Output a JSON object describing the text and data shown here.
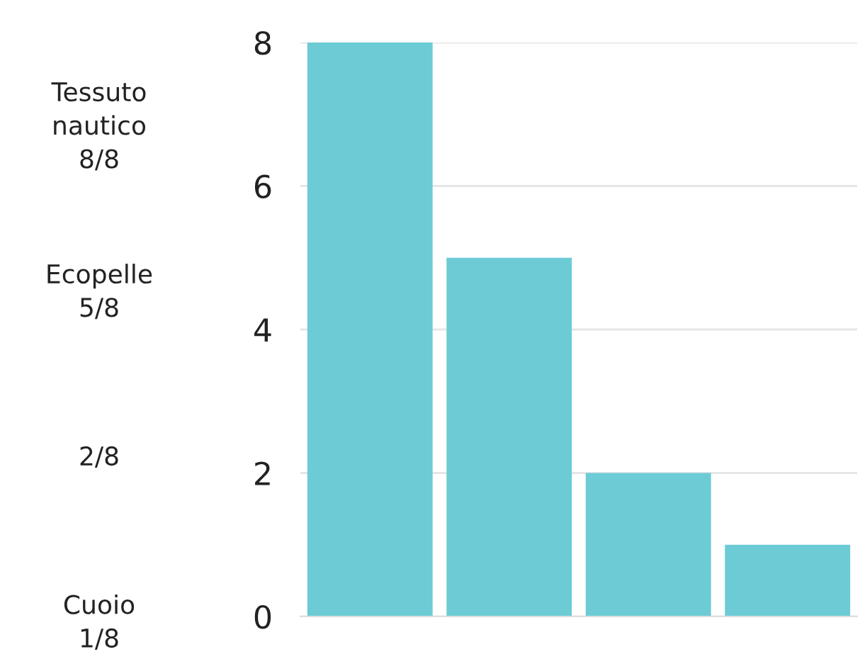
{
  "chart_data": {
    "type": "bar",
    "categories": [
      null,
      null,
      null,
      null
    ],
    "values": [
      8,
      5,
      2,
      1
    ],
    "annotations": [
      "Tessuto nautico 8/8",
      "Ecopelle 5/8",
      "2/8",
      "Cuoio 1/8"
    ],
    "color": "#6ccbd5",
    "ylim": [
      0,
      8
    ],
    "yticks": [
      0,
      2,
      4,
      6,
      8
    ],
    "grid": "y",
    "tick_labels": "y"
  }
}
